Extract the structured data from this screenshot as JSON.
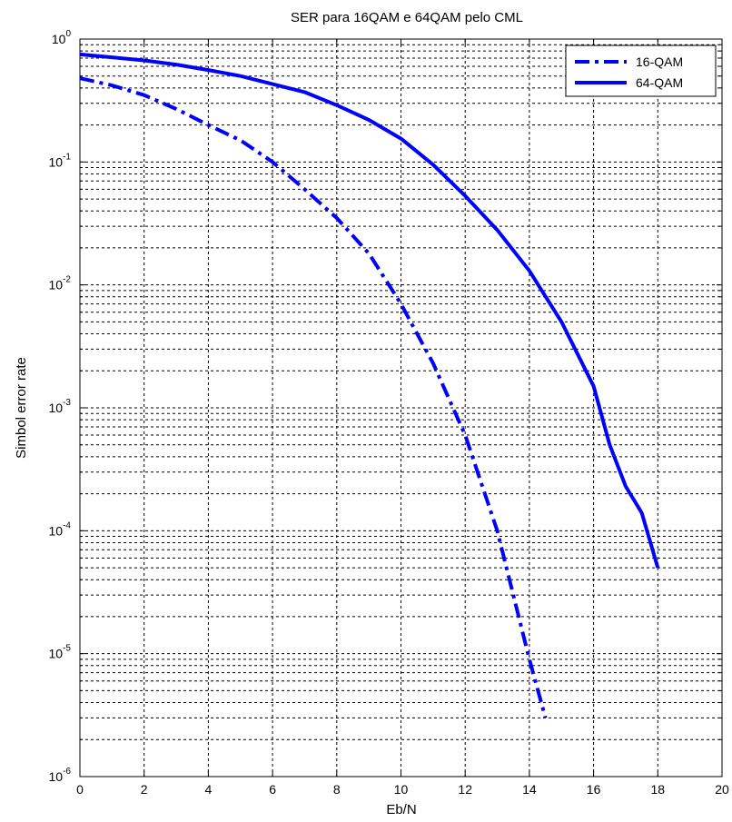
{
  "chart_data": {
    "type": "line",
    "title": "SER para 16QAM e 64QAM pelo CML",
    "xlabel": "Eb/N",
    "ylabel": "Simbol error rate",
    "xlim": [
      0,
      20
    ],
    "ylim": [
      1e-06,
      1
    ],
    "yscale": "log",
    "grid": true,
    "legend_position": "top-right",
    "x_ticks": [
      "0",
      "2",
      "4",
      "6",
      "8",
      "10",
      "12",
      "14",
      "16",
      "18",
      "20"
    ],
    "y_ticks": [
      {
        "base": "10",
        "exp": "0",
        "value": 1
      },
      {
        "base": "10",
        "exp": "-1",
        "value": 0.1
      },
      {
        "base": "10",
        "exp": "-2",
        "value": 0.01
      },
      {
        "base": "10",
        "exp": "-3",
        "value": 0.001
      },
      {
        "base": "10",
        "exp": "-4",
        "value": 0.0001
      },
      {
        "base": "10",
        "exp": "-5",
        "value": 1e-05
      },
      {
        "base": "10",
        "exp": "-6",
        "value": 1e-06
      }
    ],
    "series": [
      {
        "name": "16-QAM",
        "color": "#0000ff",
        "style": "dash-dot",
        "x": [
          0,
          1,
          2,
          3,
          4,
          5,
          6,
          7,
          8,
          9,
          10,
          11,
          12,
          13,
          13.5,
          14,
          14.5
        ],
        "y": [
          0.48,
          0.42,
          0.35,
          0.27,
          0.2,
          0.15,
          0.1,
          0.06,
          0.035,
          0.018,
          0.007,
          0.0023,
          0.0006,
          0.0001,
          3e-05,
          9e-06,
          3e-06
        ]
      },
      {
        "name": "64-QAM",
        "color": "#0000ff",
        "style": "solid",
        "x": [
          0,
          1,
          2,
          3,
          4,
          5,
          6,
          7,
          8,
          9,
          10,
          11,
          12,
          13,
          14,
          15,
          16,
          16.5,
          17,
          17.5,
          18
        ],
        "y": [
          0.75,
          0.71,
          0.67,
          0.62,
          0.56,
          0.5,
          0.43,
          0.37,
          0.29,
          0.22,
          0.155,
          0.095,
          0.053,
          0.028,
          0.013,
          0.005,
          0.0015,
          0.0005,
          0.00023,
          0.00014,
          5e-05
        ]
      }
    ]
  }
}
